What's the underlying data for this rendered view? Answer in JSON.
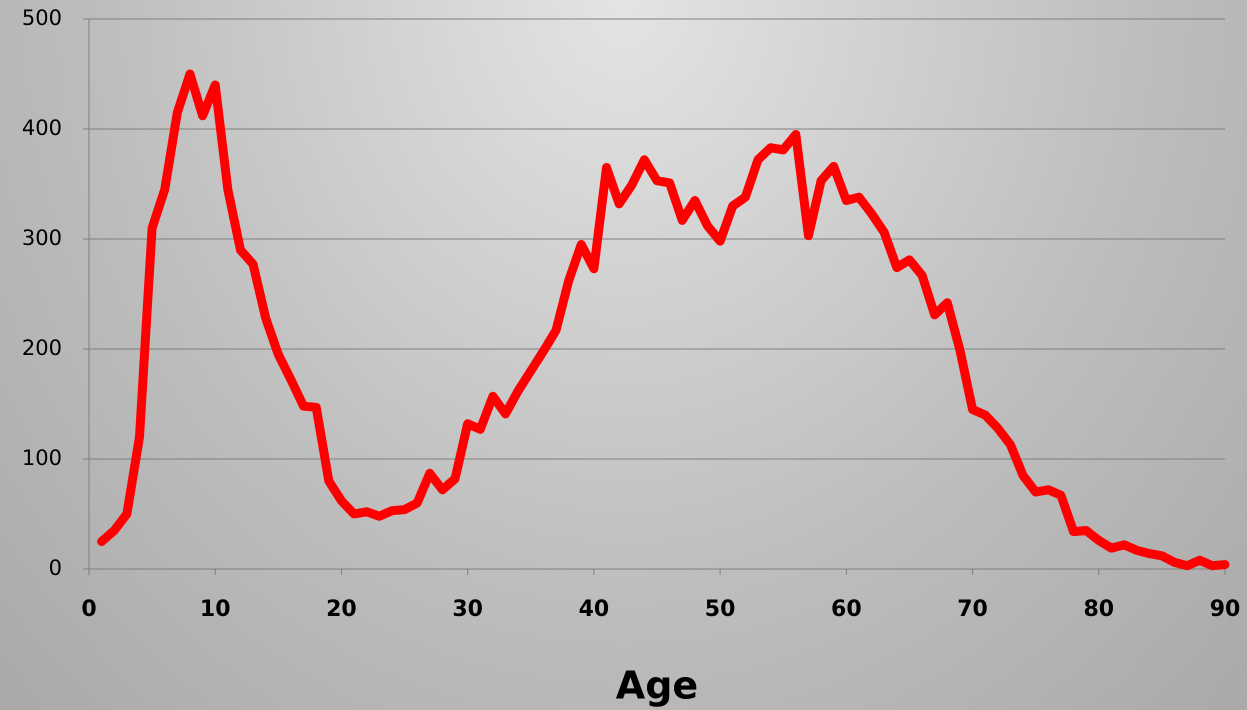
{
  "chart_data": {
    "type": "line",
    "xlabel": "Age",
    "x": [
      1,
      2,
      3,
      4,
      5,
      6,
      7,
      8,
      9,
      10,
      11,
      12,
      13,
      14,
      15,
      16,
      17,
      18,
      19,
      20,
      21,
      22,
      23,
      24,
      25,
      26,
      27,
      28,
      29,
      30,
      31,
      32,
      33,
      34,
      35,
      36,
      37,
      38,
      39,
      40,
      41,
      42,
      43,
      44,
      45,
      46,
      47,
      48,
      49,
      50,
      51,
      52,
      53,
      54,
      55,
      56,
      57,
      58,
      59,
      60,
      61,
      62,
      63,
      64,
      65,
      66,
      67,
      68,
      69,
      70,
      71,
      72,
      73,
      74,
      75,
      76,
      77,
      78,
      79,
      80,
      81,
      82,
      83,
      84,
      85,
      86,
      87,
      88,
      89,
      90
    ],
    "series": [
      {
        "color": "#ff0000",
        "values": [
          25,
          35,
          50,
          120,
          310,
          345,
          415,
          450,
          412,
          440,
          345,
          290,
          277,
          228,
          195,
          172,
          148,
          147,
          80,
          62,
          50,
          52,
          48,
          53,
          54,
          60,
          87,
          72,
          82,
          132,
          127,
          157,
          141,
          162,
          180,
          198,
          217,
          262,
          295,
          273,
          365,
          332,
          349,
          372,
          353,
          351,
          317,
          335,
          312,
          298,
          330,
          338,
          372,
          383,
          381,
          395,
          303,
          353,
          366,
          335,
          338,
          323,
          306,
          274,
          281,
          267,
          231,
          242,
          199,
          145,
          140,
          128,
          113,
          85,
          70,
          72,
          67,
          34,
          35,
          26,
          19,
          22,
          17,
          14,
          12,
          6,
          3,
          8,
          3,
          4
        ]
      }
    ],
    "xlim": [
      0,
      90
    ],
    "xticks": [
      0,
      10,
      20,
      30,
      40,
      50,
      60,
      70,
      80,
      90
    ],
    "ylim": [
      0,
      500
    ],
    "yticks": [
      0,
      100,
      200,
      300,
      400,
      500
    ],
    "grid": true
  }
}
